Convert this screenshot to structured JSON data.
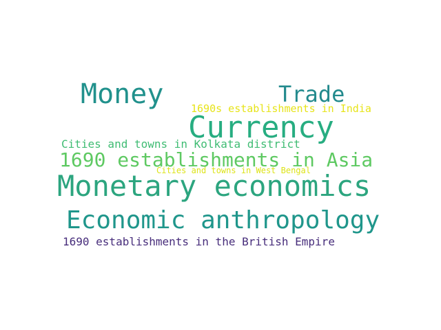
{
  "word_cloud": {
    "words": [
      {
        "text": "Money",
        "color": "#21918c"
      },
      {
        "text": "Trade",
        "color": "#238a8d"
      },
      {
        "text": "1690s establishments in India",
        "color": "#e7e419"
      },
      {
        "text": "Currency",
        "color": "#27ad81"
      },
      {
        "text": "Cities and towns in Kolkata district",
        "color": "#3fbc73"
      },
      {
        "text": "1690 establishments in Asia",
        "color": "#5ec962"
      },
      {
        "text": "Cities and towns in West Bengal",
        "color": "#dde318"
      },
      {
        "text": "Monetary economics",
        "color": "#2ca57f"
      },
      {
        "text": "Economic anthropology",
        "color": "#1f968b"
      },
      {
        "text": "1690 establishments in the British Empire",
        "color": "#472d7b"
      }
    ]
  }
}
